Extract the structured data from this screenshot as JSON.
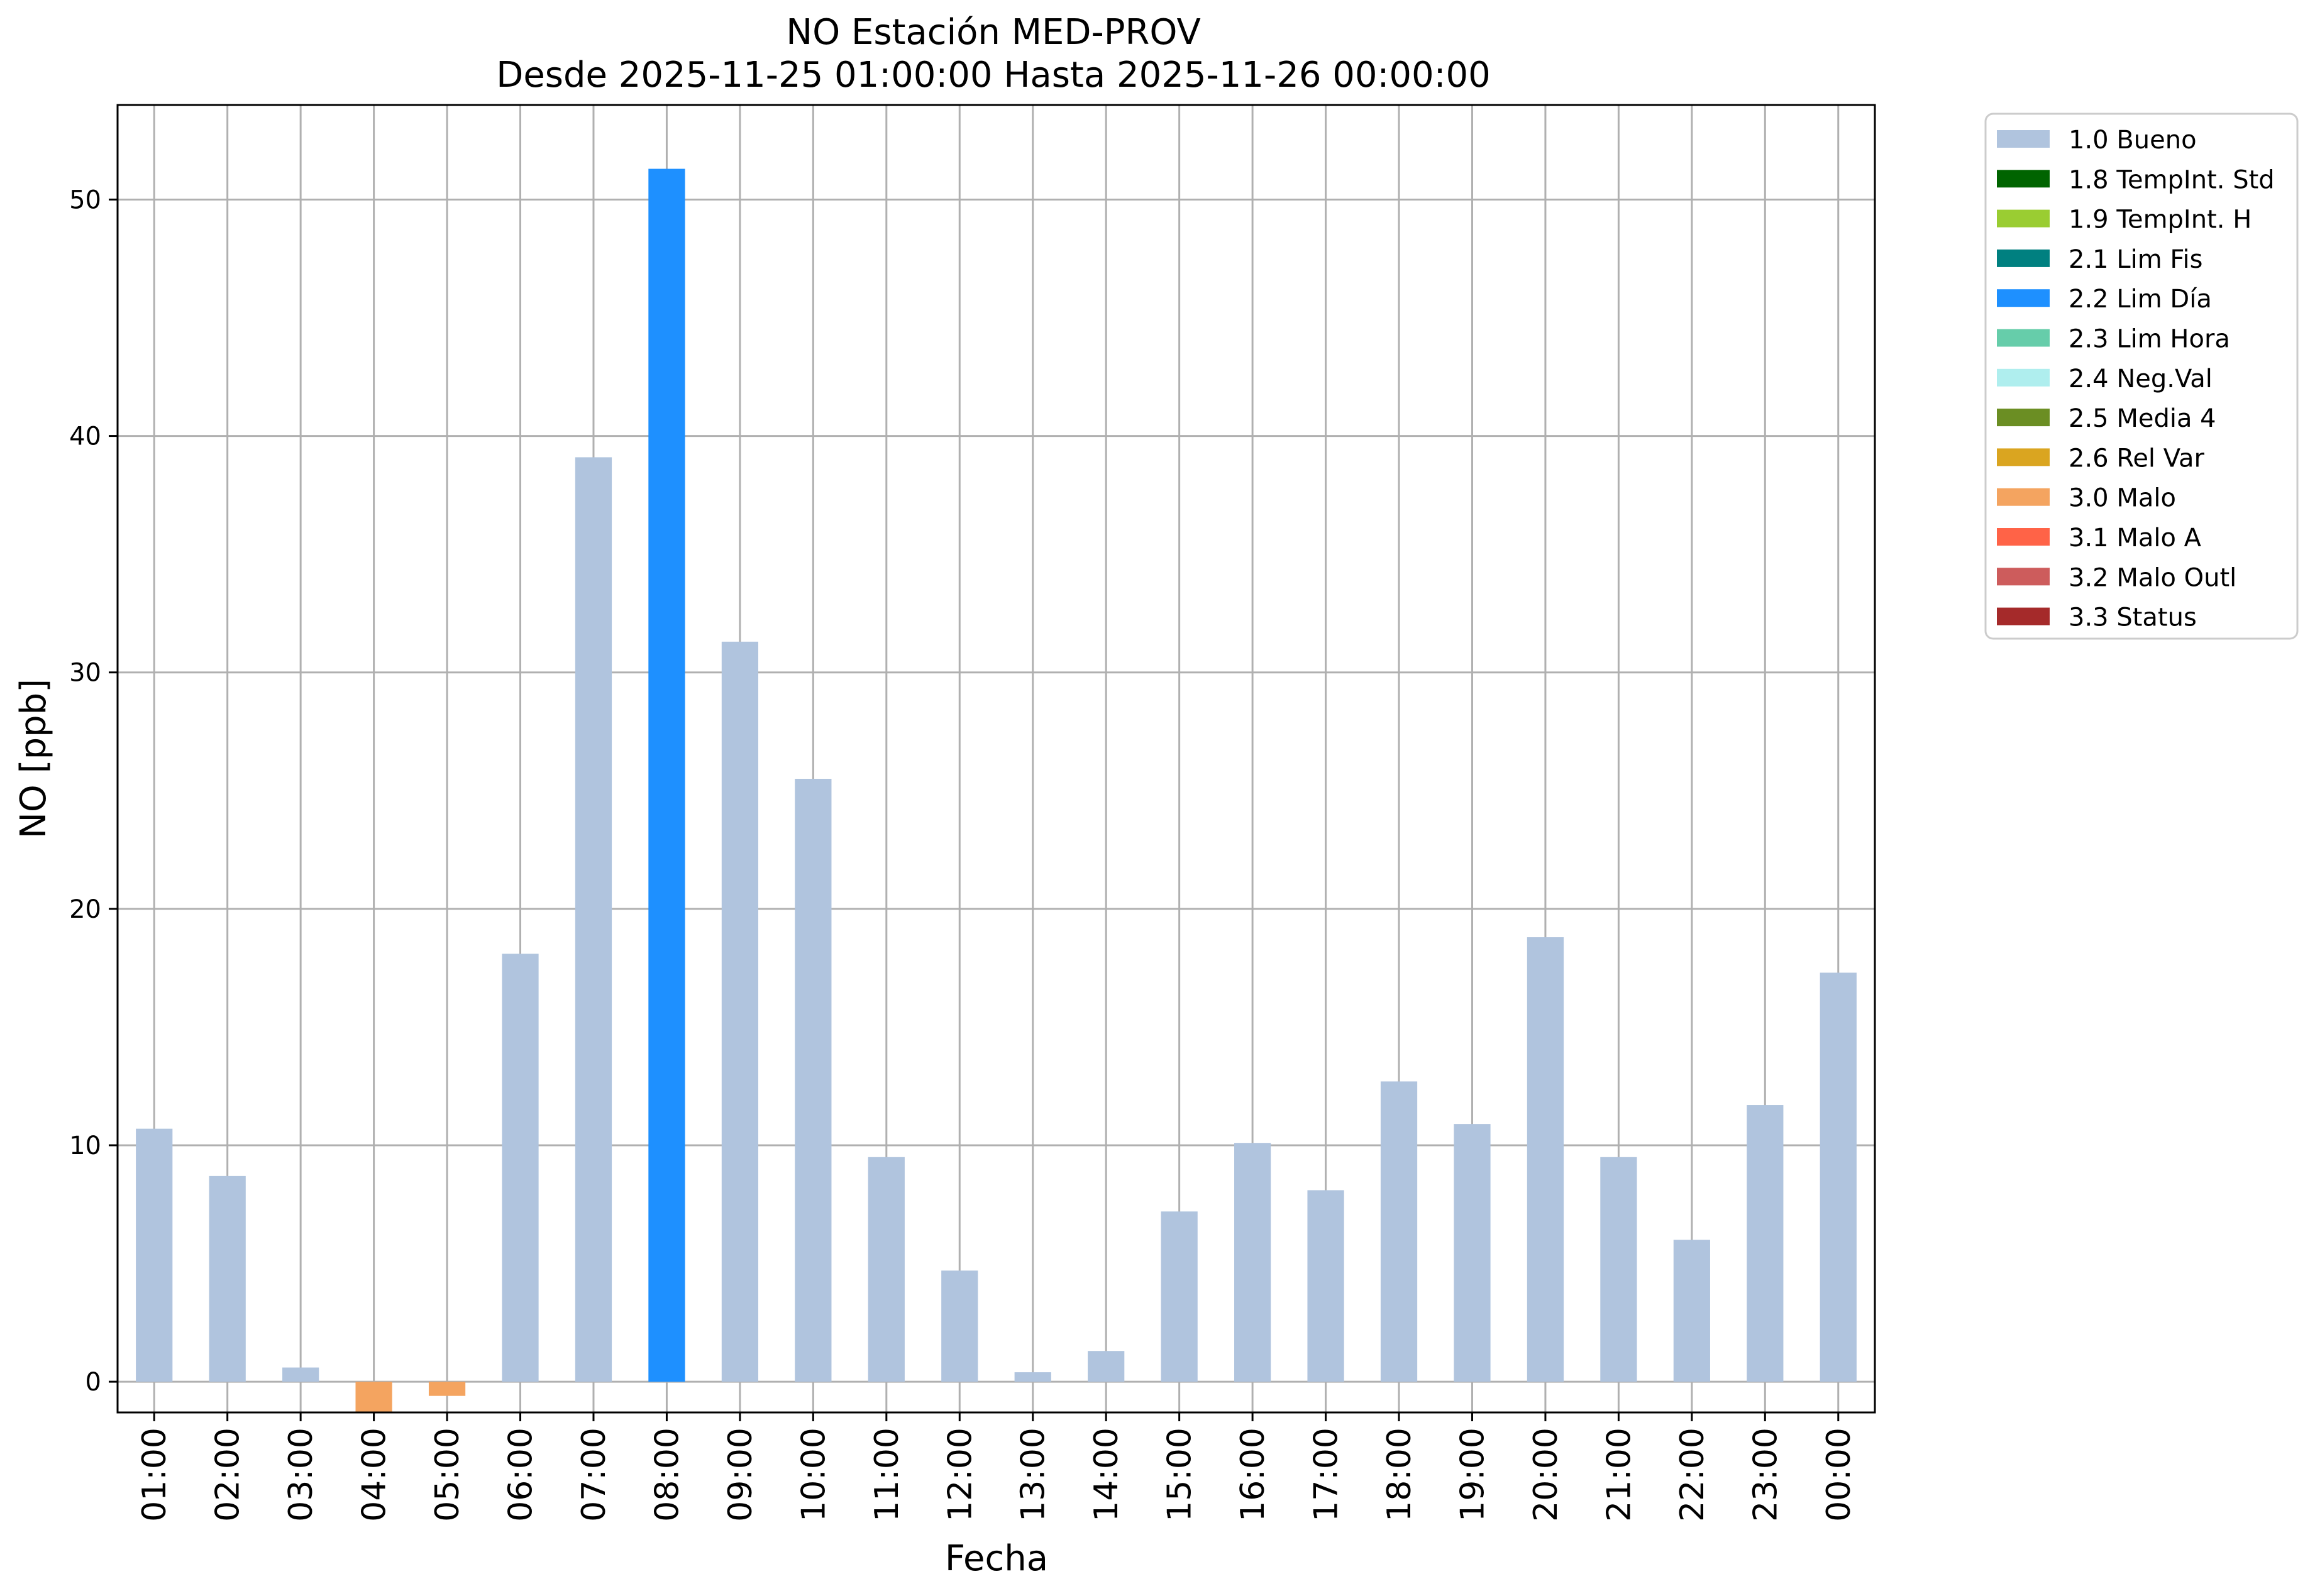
{
  "chart_data": {
    "type": "bar",
    "title_line1": "NO Estación MED-PROV",
    "title_line2": "Desde 2025-11-25 01:00:00 Hasta 2025-11-26 00:00:00",
    "xlabel": "Fecha",
    "ylabel": "NO [ppb]",
    "ylim": [
      -1.3,
      54
    ],
    "yticks": [
      0,
      10,
      20,
      30,
      40,
      50
    ],
    "grid": true,
    "legend_position": "outside-right-top",
    "categories": [
      "01:00",
      "02:00",
      "03:00",
      "04:00",
      "05:00",
      "06:00",
      "07:00",
      "08:00",
      "09:00",
      "10:00",
      "11:00",
      "12:00",
      "13:00",
      "14:00",
      "15:00",
      "16:00",
      "17:00",
      "18:00",
      "19:00",
      "20:00",
      "21:00",
      "22:00",
      "23:00",
      "00:00"
    ],
    "values": [
      10.7,
      8.7,
      0.6,
      -1.3,
      -0.6,
      18.1,
      39.1,
      51.3,
      31.3,
      25.5,
      9.5,
      4.7,
      0.4,
      1.3,
      7.2,
      10.1,
      8.1,
      12.7,
      10.9,
      18.8,
      9.5,
      6.0,
      11.7,
      17.3
    ],
    "bar_flags": [
      "1.0 Bueno",
      "1.0 Bueno",
      "1.0 Bueno",
      "3.0 Malo",
      "3.0 Malo",
      "1.0 Bueno",
      "1.0 Bueno",
      "2.2 Lim Día",
      "1.0 Bueno",
      "1.0 Bueno",
      "1.0 Bueno",
      "1.0 Bueno",
      "1.0 Bueno",
      "1.0 Bueno",
      "1.0 Bueno",
      "1.0 Bueno",
      "1.0 Bueno",
      "1.0 Bueno",
      "1.0 Bueno",
      "1.0 Bueno",
      "1.0 Bueno",
      "1.0 Bueno",
      "1.0 Bueno",
      "1.0 Bueno"
    ],
    "legend": [
      {
        "label": "1.0 Bueno",
        "color": "#B0C4DE"
      },
      {
        "label": "1.8 TempInt. Std",
        "color": "#006400"
      },
      {
        "label": "1.9 TempInt. H",
        "color": "#9ACD32"
      },
      {
        "label": "2.1 Lim Fis",
        "color": "#008080"
      },
      {
        "label": "2.2 Lim Día",
        "color": "#1E90FF"
      },
      {
        "label": "2.3 Lim Hora",
        "color": "#66CDAA"
      },
      {
        "label": "2.4 Neg.Val",
        "color": "#AFEEEE"
      },
      {
        "label": "2.5 Media 4",
        "color": "#6B8E23"
      },
      {
        "label": "2.6 Rel Var",
        "color": "#DAA520"
      },
      {
        "label": "3.0 Malo",
        "color": "#F4A460"
      },
      {
        "label": "3.1 Malo A",
        "color": "#FF6347"
      },
      {
        "label": "3.2 Malo Outl",
        "color": "#CD5C5C"
      },
      {
        "label": "3.3 Status",
        "color": "#A52A2A"
      }
    ]
  }
}
